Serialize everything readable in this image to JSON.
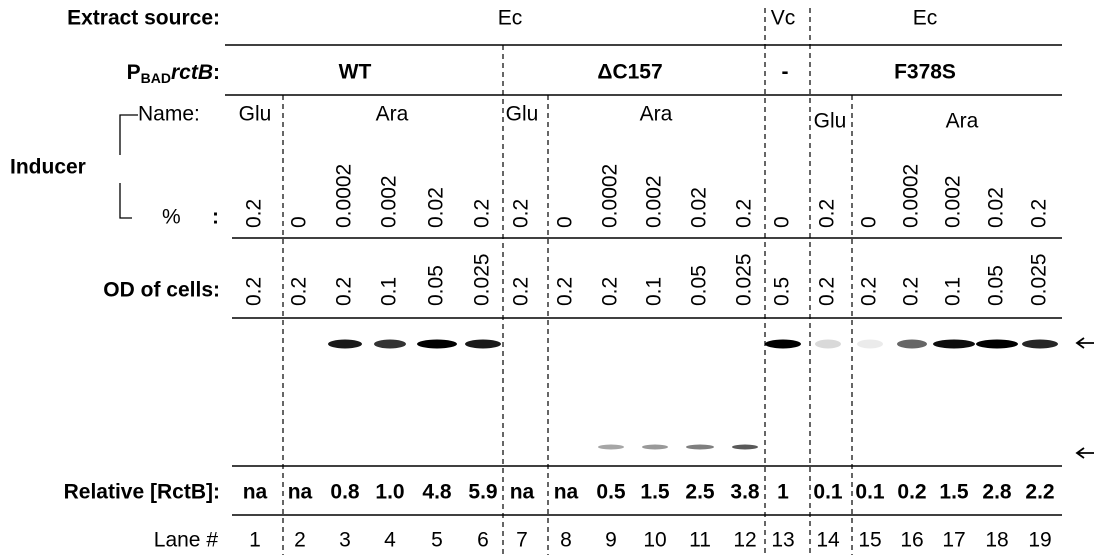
{
  "row_labels": {
    "extract_source": "Extract source:",
    "promoter_p": "P",
    "promoter_sub": "BAD",
    "promoter_gene": "rctB",
    "promoter_colon": ":",
    "inducer": "Inducer",
    "name": "Name:",
    "percent": "%",
    "percent_colon": ":",
    "od": "OD of cells:",
    "relative": "Relative [RctB]:",
    "lane": "Lane #"
  },
  "extract_source": [
    "Ec",
    "Vc",
    "Ec"
  ],
  "constructs": [
    "WT",
    "ΔC157",
    "-",
    "F378S"
  ],
  "inducer_names": [
    "Glu",
    "Ara",
    "Glu",
    "Ara",
    "Glu",
    "Ara"
  ],
  "lanes": [
    {
      "number": "1",
      "percent": "0.2",
      "od": "0.2",
      "relative": "na"
    },
    {
      "number": "2",
      "percent": "0",
      "od": "0.2",
      "relative": "na"
    },
    {
      "number": "3",
      "percent": "0.0002",
      "od": "0.2",
      "relative": "0.8"
    },
    {
      "number": "4",
      "percent": "0.002",
      "od": "0.1",
      "relative": "1.0"
    },
    {
      "number": "5",
      "percent": "0.02",
      "od": "0.05",
      "relative": "4.8"
    },
    {
      "number": "6",
      "percent": "0.2",
      "od": "0.025",
      "relative": "5.9"
    },
    {
      "number": "7",
      "percent": "0.2",
      "od": "0.2",
      "relative": "na"
    },
    {
      "number": "8",
      "percent": "0",
      "od": "0.2",
      "relative": "na"
    },
    {
      "number": "9",
      "percent": "0.0002",
      "od": "0.2",
      "relative": "0.5"
    },
    {
      "number": "10",
      "percent": "0.002",
      "od": "0.1",
      "relative": "1.5"
    },
    {
      "number": "11",
      "percent": "0.02",
      "od": "0.05",
      "relative": "2.5"
    },
    {
      "number": "12",
      "percent": "0.2",
      "od": "0.025",
      "relative": "3.8"
    },
    {
      "number": "13",
      "percent": "0",
      "od": "0.5",
      "relative": "1"
    },
    {
      "number": "14",
      "percent": "0.2",
      "od": "0.2",
      "relative": "0.1"
    },
    {
      "number": "15",
      "percent": "0",
      "od": "0.2",
      "relative": "0.1"
    },
    {
      "number": "16",
      "percent": "0.0002",
      "od": "0.2",
      "relative": "0.2"
    },
    {
      "number": "17",
      "percent": "0.002",
      "od": "0.1",
      "relative": "1.5"
    },
    {
      "number": "18",
      "percent": "0.02",
      "od": "0.05",
      "relative": "2.8"
    },
    {
      "number": "19",
      "percent": "0.2",
      "od": "0.025",
      "relative": "2.2"
    }
  ]
}
